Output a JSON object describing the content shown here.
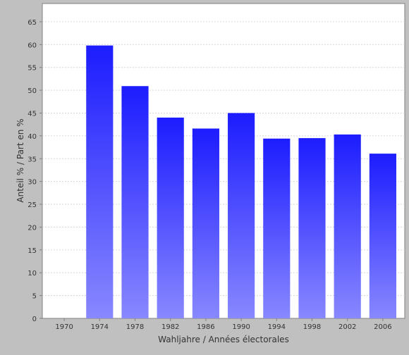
{
  "chart_data": {
    "type": "bar",
    "xlabel": "Wahljahre / Années électorales",
    "ylabel": "Anteil % / Part en %",
    "categories": [
      "1970",
      "1974",
      "1978",
      "1982",
      "1986",
      "1990",
      "1994",
      "1998",
      "2002",
      "2006"
    ],
    "values": [
      null,
      59.8,
      50.9,
      44.0,
      41.6,
      45.0,
      39.4,
      39.5,
      40.3,
      36.1
    ],
    "ylim": [
      0,
      69
    ],
    "yticks": [
      0,
      5,
      10,
      15,
      20,
      25,
      30,
      35,
      40,
      45,
      50,
      55,
      60,
      65
    ],
    "grid": true,
    "colors": {
      "bar_top": "#1c1cff",
      "bar_bottom": "#8888ff",
      "plot_bg": "#ffffff",
      "outer_bg": "#c0c0c0",
      "gridline": "#d6d6d6"
    }
  }
}
